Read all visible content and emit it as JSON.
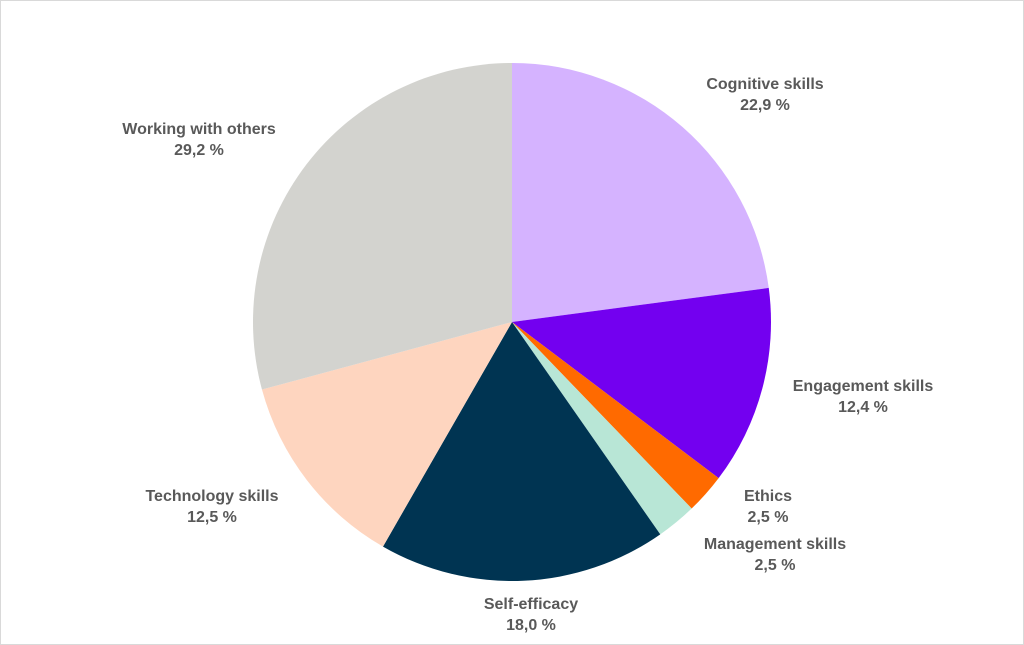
{
  "chart_data": {
    "type": "pie",
    "categories": [
      "Cognitive skills",
      "Engagement skills",
      "Ethics",
      "Management skills",
      "Self-efficacy",
      "Technology skills",
      "Working with others"
    ],
    "values": [
      22.9,
      12.4,
      2.5,
      2.5,
      18.0,
      12.5,
      29.2
    ],
    "value_labels": [
      "22,9 %",
      "12,4 %",
      "2,5 %",
      "2,5 %",
      "18,0 %",
      "12,5 %",
      "29,2 %"
    ],
    "colors": [
      "#d5b3ff",
      "#7300f0",
      "#ff6a00",
      "#b8e6d6",
      "#003452",
      "#fed5bf",
      "#d3d3cf"
    ]
  }
}
